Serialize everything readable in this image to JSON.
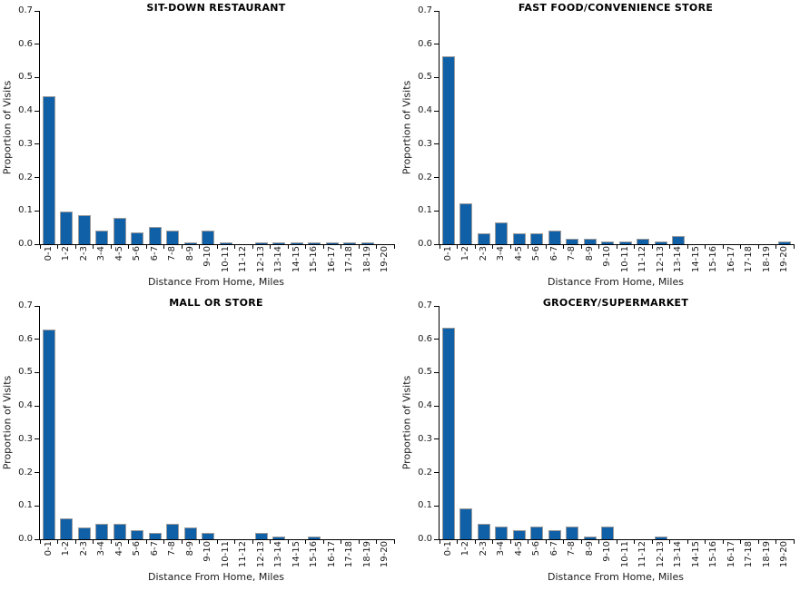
{
  "figure": {
    "background": "#FFFFFF",
    "bar_color": "#1060A8",
    "bar_border_color": "#9C9C9C",
    "axis_color": "#000000",
    "text_color": "#1A1A1A"
  },
  "chart_data": [
    {
      "type": "bar",
      "title": "SIT-DOWN RESTAURANT",
      "xlabel": "Distance From Home, Miles",
      "ylabel": "Proportion of Visits",
      "ylim": [
        0,
        0.7
      ],
      "yticks": [
        0.0,
        0.1,
        0.2,
        0.3,
        0.4,
        0.5,
        0.6,
        0.7
      ],
      "grid": false,
      "legend": false,
      "categories": [
        "0-1",
        "1-2",
        "2-3",
        "3-4",
        "4-5",
        "5-6",
        "6-7",
        "7-8",
        "8-9",
        "9-10",
        "10-11",
        "11-12",
        "12-13",
        "13-14",
        "14-15",
        "15-16",
        "16-17",
        "17-18",
        "18-19",
        "19-20"
      ],
      "values": [
        0.445,
        0.098,
        0.086,
        0.041,
        0.08,
        0.036,
        0.051,
        0.041,
        0.005,
        0.041,
        0.005,
        0,
        0.005,
        0.005,
        0.005,
        0.005,
        0.005,
        0.005,
        0.005,
        0
      ]
    },
    {
      "type": "bar",
      "title": "FAST FOOD/CONVENIENCE STORE",
      "xlabel": "Distance From Home, Miles",
      "ylabel": "Proportion of Visits",
      "ylim": [
        0,
        0.7
      ],
      "yticks": [
        0.0,
        0.1,
        0.2,
        0.3,
        0.4,
        0.5,
        0.6,
        0.7
      ],
      "grid": false,
      "legend": false,
      "categories": [
        "0-1",
        "1-2",
        "2-3",
        "3-4",
        "4-5",
        "5-6",
        "6-7",
        "7-8",
        "8-9",
        "9-10",
        "10-11",
        "11-12",
        "12-13",
        "13-14",
        "14-15",
        "15-16",
        "16-17",
        "17-18",
        "18-19",
        "19-20"
      ],
      "values": [
        0.565,
        0.122,
        0.033,
        0.065,
        0.033,
        0.033,
        0.041,
        0.016,
        0.016,
        0.008,
        0.008,
        0.016,
        0.008,
        0.024,
        0,
        0,
        0,
        0,
        0,
        0.008
      ]
    },
    {
      "type": "bar",
      "title": "MALL OR STORE",
      "xlabel": "Distance From Home, Miles",
      "ylabel": "Proportion of Visits",
      "ylim": [
        0,
        0.7
      ],
      "yticks": [
        0.0,
        0.1,
        0.2,
        0.3,
        0.4,
        0.5,
        0.6,
        0.7
      ],
      "grid": false,
      "legend": false,
      "categories": [
        "0-1",
        "1-2",
        "2-3",
        "3-4",
        "4-5",
        "5-6",
        "6-7",
        "7-8",
        "8-9",
        "9-10",
        "10-11",
        "11-12",
        "12-13",
        "13-14",
        "14-15",
        "15-16",
        "16-17",
        "17-18",
        "18-19",
        "19-20"
      ],
      "values": [
        0.63,
        0.062,
        0.036,
        0.045,
        0.045,
        0.027,
        0.018,
        0.045,
        0.036,
        0.018,
        0,
        0,
        0.018,
        0.009,
        0,
        0.009,
        0,
        0,
        0,
        0
      ]
    },
    {
      "type": "bar",
      "title": "GROCERY/SUPERMARKET",
      "xlabel": "Distance From Home, Miles",
      "ylabel": "Proportion of Visits",
      "ylim": [
        0,
        0.7
      ],
      "yticks": [
        0.0,
        0.1,
        0.2,
        0.3,
        0.4,
        0.5,
        0.6,
        0.7
      ],
      "grid": false,
      "legend": false,
      "categories": [
        "0-1",
        "1-2",
        "2-3",
        "3-4",
        "4-5",
        "5-6",
        "6-7",
        "7-8",
        "8-9",
        "9-10",
        "10-11",
        "11-12",
        "12-13",
        "13-14",
        "14-15",
        "15-16",
        "16-17",
        "17-18",
        "18-19",
        "19-20"
      ],
      "values": [
        0.635,
        0.092,
        0.046,
        0.037,
        0.027,
        0.037,
        0.027,
        0.037,
        0.009,
        0.037,
        0,
        0,
        0.009,
        0,
        0,
        0,
        0,
        0,
        0,
        0
      ]
    }
  ]
}
